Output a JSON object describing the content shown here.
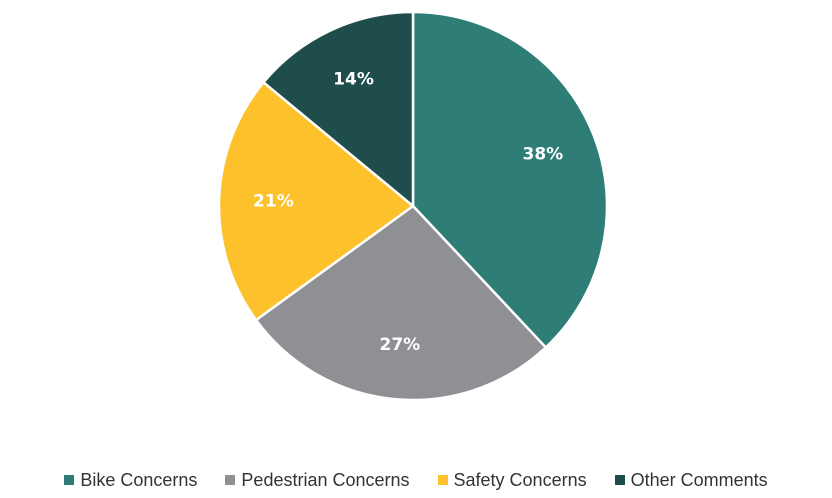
{
  "chart_data": {
    "type": "pie",
    "categories": [
      "Bike Concerns",
      "Pedestrian Concerns",
      "Safety Concerns",
      "Other Comments"
    ],
    "values": [
      38,
      27,
      21,
      14
    ],
    "data_labels": [
      "38%",
      "27%",
      "21%",
      "14%"
    ],
    "colors": [
      "#2E7D77",
      "#8F9094",
      "#FCC12B",
      "#1F4D4C"
    ],
    "title": "",
    "legend_position": "bottom",
    "start_angle": "12 o'clock",
    "direction": "clockwise"
  },
  "legend": {
    "items": [
      {
        "label": "Bike Concerns",
        "color": "#2E7D77"
      },
      {
        "label": "Pedestrian Concerns",
        "color": "#8F9094"
      },
      {
        "label": "Safety Concerns",
        "color": "#FCC12B"
      },
      {
        "label": "Other Comments",
        "color": "#1F4D4C"
      }
    ]
  }
}
